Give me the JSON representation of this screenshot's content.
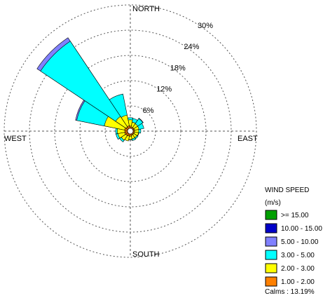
{
  "chart_data": {
    "type": "windrose",
    "directions": [
      "N",
      "NNE",
      "NE",
      "ENE",
      "E",
      "ESE",
      "SE",
      "SSE",
      "S",
      "SSW",
      "SW",
      "WSW",
      "W",
      "WNW",
      "NW",
      "NNW"
    ],
    "compass_labels": {
      "north": "NORTH",
      "east": "EAST",
      "south": "SOUTH",
      "west": "WEST"
    },
    "radial_ticks": [
      6,
      12,
      18,
      24,
      30
    ],
    "radial_tick_labels": [
      "6%",
      "12%",
      "18%",
      "24%",
      "30%"
    ],
    "rmax_percent": 30,
    "grid": true,
    "legend": {
      "title_line1": "WIND SPEED",
      "title_line2": "(m/s)",
      "placement": "bottom-right",
      "classes": [
        {
          "label": ">= 15.00",
          "color": "#00a000"
        },
        {
          "label": "10.00 - 15.00",
          "color": "#0000c8"
        },
        {
          "label": "5.00 - 10.00",
          "color": "#8080ff"
        },
        {
          "label": "3.00 - 5.00",
          "color": "#00ffff"
        },
        {
          "label": "2.00 - 3.00",
          "color": "#ffff00"
        },
        {
          "label": "1.00 - 2.00",
          "color": "#ff8000"
        }
      ]
    },
    "calms": "Calms : 13.19%",
    "series": [
      {
        "name": "1.00 - 2.00",
        "values": [
          1.2,
          1.0,
          1.0,
          1.0,
          1.0,
          1.0,
          1.0,
          1.0,
          1.2,
          1.2,
          1.3,
          1.4,
          1.3,
          1.4,
          1.2,
          1.3
        ]
      },
      {
        "name": "2.00 - 3.00",
        "values": [
          1.5,
          1.2,
          1.1,
          1.1,
          1.0,
          1.0,
          0.9,
          0.9,
          0.8,
          1.2,
          1.3,
          1.6,
          1.8,
          4.9,
          3.0,
          2.6
        ]
      },
      {
        "name": "3.00 - 5.00",
        "values": [
          0.5,
          0.9,
          1.5,
          1.2,
          0.5,
          0.1,
          0.3,
          0.4,
          0.1,
          0.0,
          0.5,
          0.5,
          0.4,
          6.7,
          21.5,
          5.1
        ]
      },
      {
        "name": "5.00 - 10.00",
        "values": [
          0.0,
          0.0,
          0.1,
          0.0,
          0.0,
          0.0,
          0.0,
          0.0,
          0.0,
          0.0,
          0.0,
          0.0,
          0.0,
          0.3,
          1.0,
          0.0
        ]
      },
      {
        "name": "10.00 - 15.00",
        "values": [
          0,
          0,
          0,
          0,
          0,
          0,
          0,
          0,
          0,
          0,
          0,
          0,
          0,
          0,
          0,
          0
        ]
      },
      {
        "name": ">= 15.00",
        "values": [
          0,
          0,
          0,
          0,
          0,
          0,
          0,
          0,
          0,
          0,
          0,
          0,
          0,
          0,
          0,
          0
        ]
      }
    ]
  }
}
